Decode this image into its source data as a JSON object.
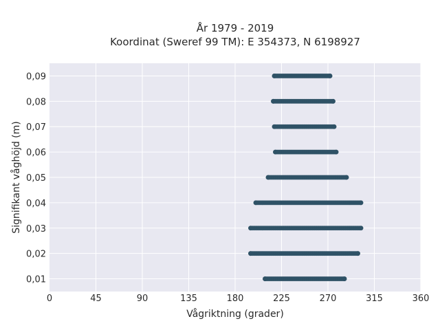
{
  "chart_data": {
    "type": "scatter",
    "title_line1": "År 1979 - 2019",
    "title_line2": "Koordinat (Sweref 99 TM): E 354373, N 6198927",
    "xlabel": "Vågriktning (grader)",
    "ylabel": "Signifikant våghöjd (m)",
    "xlim": [
      0,
      360
    ],
    "ylim": [
      0.005,
      0.095
    ],
    "xticks": [
      0,
      45,
      90,
      135,
      180,
      225,
      270,
      315,
      360
    ],
    "xtick_labels": [
      "0",
      "45",
      "90",
      "135",
      "180",
      "225",
      "270",
      "315",
      "360"
    ],
    "yticks": [
      0.01,
      0.02,
      0.03,
      0.04,
      0.05,
      0.06,
      0.07,
      0.08,
      0.09
    ],
    "ytick_labels": [
      "0,01",
      "0,02",
      "0,03",
      "0,04",
      "0,05",
      "0,06",
      "0,07",
      "0,08",
      "0,09"
    ],
    "grid": true,
    "background": "#e8e8f1",
    "point_color": "#2f5266",
    "series": [
      {
        "values": [
          {
            "y": 0.01,
            "x_min": 209,
            "x_max": 286
          },
          {
            "y": 0.02,
            "x_min": 195,
            "x_max": 299
          },
          {
            "y": 0.03,
            "x_min": 195,
            "x_max": 302
          },
          {
            "y": 0.04,
            "x_min": 200,
            "x_max": 302
          },
          {
            "y": 0.05,
            "x_min": 212,
            "x_max": 288
          },
          {
            "y": 0.06,
            "x_min": 219,
            "x_max": 278
          },
          {
            "y": 0.07,
            "x_min": 218,
            "x_max": 276
          },
          {
            "y": 0.08,
            "x_min": 217,
            "x_max": 275
          },
          {
            "y": 0.09,
            "x_min": 218,
            "x_max": 272
          }
        ]
      }
    ]
  }
}
